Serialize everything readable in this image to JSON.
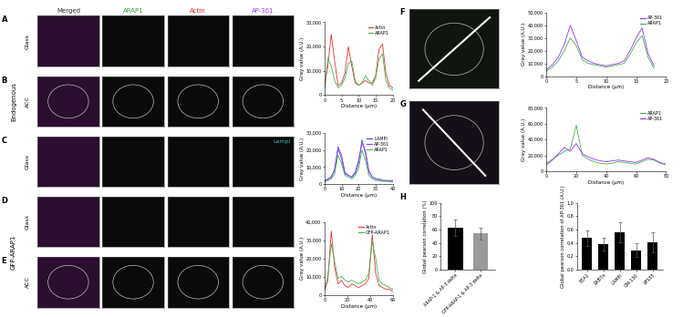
{
  "panel_letters": [
    "A",
    "B",
    "C",
    "D",
    "E",
    "F",
    "G",
    "H"
  ],
  "column_headers": [
    "Merged",
    "ARAP1",
    "Actin",
    "AP-3δ1"
  ],
  "row_conditions": [
    "Glass",
    "ACC",
    "Glass",
    "Glass",
    "ACC"
  ],
  "groups": [
    "Endogenous",
    "GFP-ARAP1"
  ],
  "panel_c_marker": "LampI",
  "chart_data": [
    {
      "type": "line",
      "xlabel": "Distance (µm)",
      "ylabel": "Gray value (A.U.)",
      "xlim": [
        0,
        20
      ],
      "xticks": [
        0,
        5,
        10,
        15,
        20
      ],
      "ylim": [
        0,
        30000
      ],
      "yticks": [
        0,
        {
          "value": 10000,
          "label": "10,000"
        },
        {
          "value": 20000,
          "label": "20,000"
        },
        {
          "value": 30000,
          "label": "30,000"
        }
      ],
      "legend": "upper right",
      "x": [
        0,
        1,
        2,
        3,
        4,
        5,
        6,
        7,
        8,
        9,
        10,
        11,
        12,
        13,
        14,
        15,
        16,
        17,
        18,
        19,
        20
      ],
      "series": [
        {
          "name": "Actin",
          "color": "#e8312f",
          "values": [
            3000,
            12000,
            25000,
            14000,
            4000,
            5000,
            9000,
            20000,
            12000,
            5000,
            4000,
            5000,
            6000,
            5000,
            5000,
            8000,
            19000,
            21000,
            9000,
            4000,
            3000
          ]
        },
        {
          "name": "ARAP1",
          "color": "#3cb34a",
          "values": [
            2000,
            15000,
            12000,
            6000,
            3000,
            4000,
            7000,
            13000,
            14000,
            6000,
            4000,
            5000,
            8000,
            6000,
            4000,
            7000,
            15000,
            17000,
            6000,
            3000,
            2000
          ]
        }
      ]
    },
    {
      "type": "line",
      "xlabel": "Distance (µm)",
      "ylabel": "Gray value (A.U.)",
      "xlim": [
        0,
        40
      ],
      "xticks": [
        0,
        10,
        20,
        30,
        40
      ],
      "ylim": [
        0,
        30000
      ],
      "yticks": [
        0,
        {
          "value": 10000,
          "label": "10,000"
        },
        {
          "value": 20000,
          "label": "20,000"
        },
        {
          "value": 30000,
          "label": "30,000"
        }
      ],
      "legend": "upper right",
      "x": [
        0,
        2,
        4,
        6,
        8,
        10,
        12,
        14,
        16,
        18,
        20,
        22,
        24,
        26,
        28,
        30,
        32,
        34,
        36,
        38,
        40
      ],
      "series": [
        {
          "name": "LAMPI",
          "color": "#2f4fd8",
          "values": [
            2000,
            3000,
            4000,
            8000,
            21000,
            15000,
            6000,
            5000,
            4000,
            6000,
            12000,
            26000,
            18000,
            7000,
            4000,
            3000,
            3000,
            2000,
            2000,
            2000,
            2000
          ]
        },
        {
          "name": "AP-3δ1",
          "color": "#9b30ff",
          "values": [
            1500,
            2500,
            4000,
            9000,
            22000,
            17000,
            7000,
            5000,
            4000,
            7000,
            14000,
            24000,
            20000,
            8000,
            4000,
            3000,
            2000,
            2000,
            2000,
            1500,
            1500
          ]
        },
        {
          "name": "ARAP1",
          "color": "#3cb34a",
          "values": [
            1000,
            2000,
            3000,
            6000,
            17000,
            12000,
            5000,
            4000,
            3000,
            5000,
            9000,
            20000,
            14000,
            5000,
            3000,
            2000,
            2000,
            1500,
            1500,
            1500,
            1000
          ]
        }
      ]
    },
    {
      "type": "line",
      "xlabel": "Distance (µm)",
      "ylabel": "Gray value (A.U.)",
      "xlim": [
        0,
        60
      ],
      "xticks": [
        0,
        20,
        40,
        60
      ],
      "ylim": [
        0,
        40000
      ],
      "yticks": [
        0,
        {
          "value": 10000,
          "label": "10,000"
        },
        {
          "value": 20000,
          "label": "20,000"
        },
        {
          "value": 30000,
          "label": "30,000"
        },
        {
          "value": 40000,
          "label": "40,000"
        }
      ],
      "legend": "upper right",
      "x": [
        0,
        3,
        6,
        9,
        12,
        15,
        18,
        21,
        24,
        27,
        30,
        33,
        36,
        39,
        42,
        45,
        48,
        51,
        54,
        57,
        60
      ],
      "series": [
        {
          "name": "Actin",
          "color": "#e8312f",
          "values": [
            2000,
            8000,
            35000,
            15000,
            6000,
            8000,
            5000,
            4000,
            6000,
            5000,
            4000,
            5000,
            6000,
            9000,
            33000,
            12000,
            5000,
            4000,
            3000,
            3000,
            2000
          ]
        },
        {
          "name": "GFP-ARAP1",
          "color": "#3cb34a",
          "values": [
            3000,
            10000,
            28000,
            18000,
            9000,
            10000,
            8000,
            7000,
            8000,
            7000,
            6000,
            7000,
            8000,
            12000,
            29000,
            20000,
            8000,
            6000,
            5000,
            4000,
            3000
          ]
        }
      ]
    },
    {
      "type": "line",
      "xlabel": "Distance (µm)",
      "ylabel": "Gray value (A.U.)",
      "xlim": [
        0,
        20
      ],
      "xticks": [
        0,
        5,
        10,
        15,
        20
      ],
      "ylim": [
        0,
        50000
      ],
      "yticks": [
        0,
        {
          "value": 10000,
          "label": "10,000"
        },
        {
          "value": 20000,
          "label": "20,000"
        },
        {
          "value": 30000,
          "label": "30,000"
        },
        {
          "value": 40000,
          "label": "40,000"
        },
        {
          "value": 50000,
          "label": "50,000"
        }
      ],
      "legend": "upper right",
      "x": [
        0,
        1,
        2,
        3,
        4,
        5,
        6,
        7,
        8,
        9,
        10,
        11,
        12,
        13,
        14,
        15,
        16,
        17,
        18
      ],
      "series": [
        {
          "name": "AP-3δ1",
          "color": "#9b30ff",
          "values": [
            5000,
            9000,
            15000,
            25000,
            40000,
            28000,
            15000,
            12000,
            10000,
            9000,
            8000,
            9000,
            10000,
            12000,
            20000,
            30000,
            38000,
            18000,
            8000
          ]
        },
        {
          "name": "ARAP1",
          "color": "#3cb34a",
          "values": [
            4000,
            7000,
            12000,
            20000,
            30000,
            24000,
            13000,
            10000,
            9000,
            8000,
            7000,
            8000,
            9000,
            10000,
            17000,
            26000,
            32000,
            15000,
            6000
          ]
        }
      ]
    },
    {
      "type": "line",
      "xlabel": "Distance (µm)",
      "ylabel": "Gray value (A.U.)",
      "xlim": [
        0,
        80
      ],
      "xticks": [
        0,
        20,
        40,
        60,
        80
      ],
      "ylim": [
        0,
        80000
      ],
      "yticks": [
        0,
        {
          "value": 20000,
          "label": "20,000"
        },
        {
          "value": 40000,
          "label": "40,000"
        },
        {
          "value": 60000,
          "label": "60,000"
        },
        {
          "value": 80000,
          "label": "80,000"
        }
      ],
      "legend": "upper right",
      "x": [
        0,
        4,
        8,
        12,
        16,
        20,
        24,
        28,
        32,
        36,
        40,
        44,
        48,
        52,
        56,
        60,
        64,
        68,
        72,
        76,
        80
      ],
      "series": [
        {
          "name": "ARAP1",
          "color": "#3cb34a",
          "values": [
            10000,
            15000,
            20000,
            25000,
            28000,
            58000,
            20000,
            15000,
            12000,
            10000,
            9000,
            10000,
            12000,
            11000,
            10000,
            9000,
            12000,
            15000,
            14000,
            10000,
            8000
          ]
        },
        {
          "name": "AP-3δ1",
          "color": "#9b30ff",
          "values": [
            8000,
            14000,
            22000,
            30000,
            25000,
            35000,
            22000,
            18000,
            15000,
            13000,
            12000,
            13000,
            14000,
            13000,
            12000,
            11000,
            14000,
            17000,
            15000,
            11000,
            9000
          ]
        }
      ]
    },
    {
      "type": "bar",
      "ylabel": "Global pearson correlation (%)",
      "categories": [
        "ARAP-1 & AP-3 delta",
        "GFP-ARAP-1 & AP-3 delta"
      ],
      "values": [
        63,
        54
      ],
      "error": [
        12,
        9
      ],
      "colors": [
        "#000000",
        "#9a9a9a"
      ],
      "ylim": [
        0,
        100
      ],
      "yticks": [
        0,
        20,
        40,
        60,
        80,
        100
      ]
    },
    {
      "type": "bar",
      "ylabel": "Global pearson correlation of AP-3δ1 (A.U.)",
      "categories": [
        "EEA1",
        "RAB7a",
        "LAMPI",
        "GM-130",
        "VPS35"
      ],
      "values": [
        0.47,
        0.38,
        0.56,
        0.29,
        0.41
      ],
      "error": [
        0.12,
        0.1,
        0.15,
        0.1,
        0.15
      ],
      "color": "#000000",
      "ylim": [
        0,
        1
      ],
      "yticks": [
        {
          "value": 0,
          "label": "0.0"
        },
        0.2,
        0.4,
        0.6,
        0.8,
        {
          "value": 1,
          "label": "1.0"
        }
      ]
    }
  ]
}
